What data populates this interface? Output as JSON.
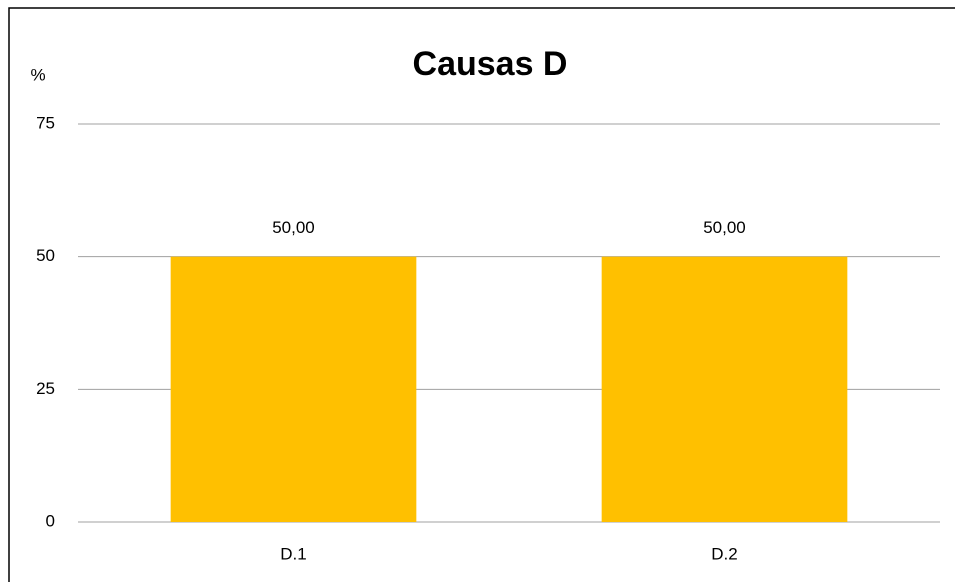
{
  "chart_data": {
    "type": "bar",
    "title": "Causas D",
    "y_label": "%",
    "categories": [
      "D.1",
      "D.2"
    ],
    "values": [
      50,
      50
    ],
    "value_labels": [
      "50,00",
      "50,00"
    ],
    "color": "#ffc000",
    "ylim": [
      0,
      75
    ],
    "yticks": [
      0,
      25,
      50,
      75
    ],
    "grid": true
  }
}
